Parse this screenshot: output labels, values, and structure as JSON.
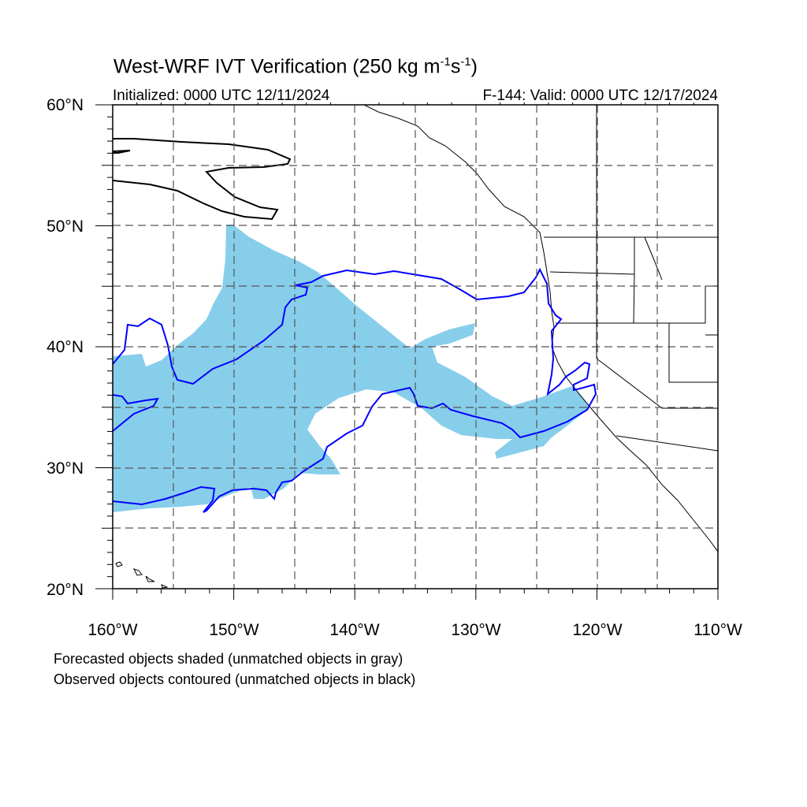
{
  "title": {
    "main_prefix": "West-WRF IVT Verification (250 kg m",
    "exp1": "-1",
    "mid": "s",
    "exp2": "-1",
    "suffix": ")"
  },
  "initialized": "Initialized: 0000 UTC 12/11/2024",
  "valid": "F-144: Valid: 0000 UTC 12/17/2024",
  "map": {
    "lon_range": [
      -160,
      -110
    ],
    "lat_range": [
      20,
      60
    ],
    "lon_ticks": [
      "160°W",
      "150°W",
      "140°W",
      "130°W",
      "120°W",
      "110°W"
    ],
    "lat_ticks": [
      "20°N",
      "30°N",
      "40°N",
      "50°N",
      "60°N"
    ],
    "forecast_fill_color": "#87ceeb",
    "matched_observed_color": "#0000ff",
    "unmatched_observed_color": "#000000",
    "grid_line_style": "dashed"
  },
  "notes": {
    "line1": "Forecasted objects shaded (unmatched objects in gray)",
    "line2": "Observed objects contoured (unmatched objects in black)"
  }
}
